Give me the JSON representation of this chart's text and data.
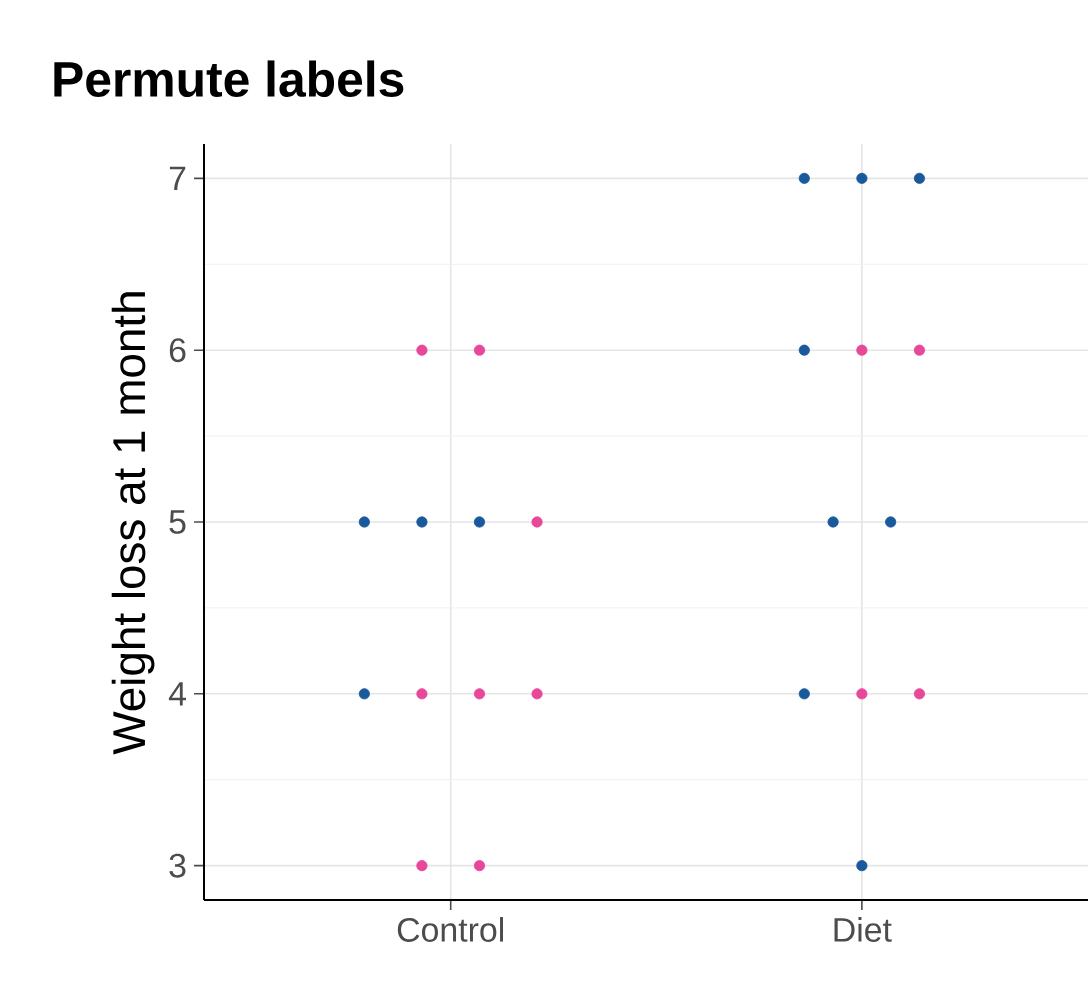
{
  "chart_data": {
    "type": "scatter",
    "title": "Permute labels",
    "ylabel": "Weight loss at 1 month",
    "categories": [
      "Control",
      "Diet"
    ],
    "ylim": [
      2.8,
      7.2
    ],
    "yticks": [
      3,
      4,
      5,
      6,
      7
    ],
    "grid": true,
    "marker": "circle",
    "series": [
      {
        "color": "#1a5a9c",
        "x": [
          "Control",
          "Control",
          "Control",
          "Control",
          "Diet",
          "Diet",
          "Diet",
          "Diet",
          "Diet",
          "Diet",
          "Diet",
          "Diet"
        ],
        "values": [
          5,
          4,
          5,
          5,
          7,
          7,
          7,
          6,
          5,
          5,
          4,
          3
        ]
      },
      {
        "color": "#e7489a",
        "x": [
          "Control",
          "Control",
          "Control",
          "Control",
          "Control",
          "Control",
          "Control",
          "Control",
          "Diet",
          "Diet",
          "Diet",
          "Diet"
        ],
        "values": [
          6,
          6,
          5,
          4,
          4,
          4,
          3,
          3,
          6,
          6,
          4,
          4
        ]
      }
    ]
  }
}
